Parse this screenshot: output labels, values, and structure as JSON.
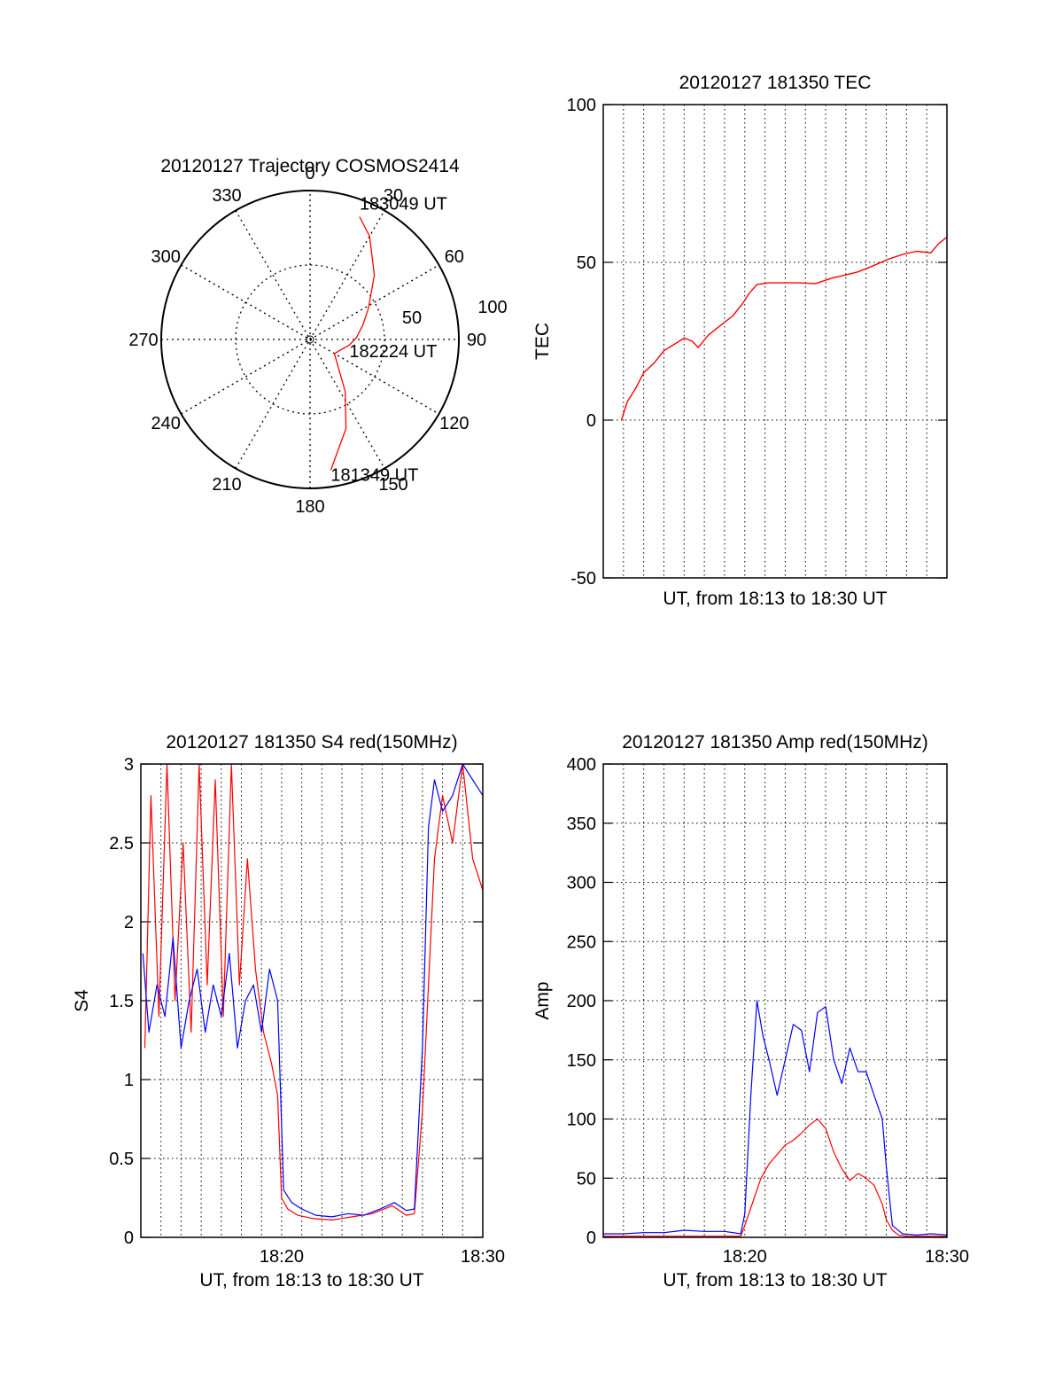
{
  "colors": {
    "red": "#ff0000",
    "blue": "#0000ff",
    "axes": "#000000",
    "grid": "#000000"
  },
  "chart_data": [
    {
      "type": "polar",
      "title": "20120127 Trajectory COSMOS2414",
      "azimuth_labels": [
        "0",
        "30",
        "60",
        "90",
        "120",
        "150",
        "180",
        "210",
        "240",
        "270",
        "300",
        "330"
      ],
      "radial_labels": [
        "50",
        "100"
      ],
      "grid": true,
      "series": [
        {
          "color": "red",
          "points_az_el": [
            [
              171,
              10
            ],
            [
              158,
              32
            ],
            [
              146,
              52
            ],
            [
              120,
              73
            ],
            [
              98,
              66
            ],
            [
              88,
              62
            ],
            [
              75,
              57
            ],
            [
              62,
              50
            ],
            [
              45,
              35
            ],
            [
              30,
              18
            ],
            [
              22,
              10
            ]
          ]
        }
      ],
      "annotations": [
        {
          "text": "183049 UT",
          "az": 22,
          "el": 10
        },
        {
          "text": "182224 UT",
          "az": 98,
          "el": 66
        },
        {
          "text": "181349 UT",
          "az": 171,
          "el": 10
        }
      ]
    },
    {
      "type": "line",
      "title": "20120127 181350 TEC",
      "xlabel": "UT, from 18:13 to 18:30 UT",
      "ylabel": "TEC",
      "xlim": [
        0,
        17
      ],
      "ylim": [
        -50,
        100
      ],
      "yticks": [
        "100",
        "50",
        "0",
        "-50"
      ],
      "xticks": [],
      "grid": true,
      "series": [
        {
          "color": "red",
          "x": [
            0.9,
            1.2,
            1.6,
            2.0,
            2.5,
            3.0,
            3.5,
            4.0,
            4.4,
            4.7,
            5.2,
            5.8,
            6.4,
            6.9,
            7.2,
            7.6,
            8.2,
            9.0,
            9.6,
            10.5,
            11.3,
            12.0,
            12.6,
            13.2,
            14.1,
            14.8,
            15.5,
            16.2,
            16.6,
            17.0
          ],
          "y": [
            0,
            6,
            10,
            15,
            18,
            22,
            24,
            26,
            25,
            23,
            27,
            30,
            33,
            37,
            40,
            43,
            43.5,
            43.5,
            43.5,
            43.3,
            45,
            46,
            47,
            48.5,
            51,
            52.5,
            53.5,
            53,
            56,
            58
          ]
        }
      ]
    },
    {
      "type": "line",
      "title": "20120127 181350 S4 red(150MHz)",
      "xlabel": "UT, from 18:13 to 18:30 UT",
      "ylabel": "S4",
      "xlim": [
        0,
        17
      ],
      "ylim": [
        0,
        3
      ],
      "yticks": [
        "3",
        "2.5",
        "2",
        "1.5",
        "1",
        "0.5",
        "0"
      ],
      "xticks": [
        {
          "at": 7,
          "label": "18:20"
        },
        {
          "at": 17,
          "label": "18:30"
        }
      ],
      "grid": true,
      "series": [
        {
          "color": "red",
          "x": [
            0.2,
            0.5,
            0.9,
            1.3,
            1.7,
            2.1,
            2.5,
            2.9,
            3.3,
            3.7,
            4.1,
            4.5,
            4.9,
            5.3,
            5.7,
            6.1,
            6.5,
            6.8,
            7.0,
            7.3,
            7.8,
            8.5,
            9.5,
            10.5,
            11.5,
            12.5,
            13.2,
            13.6,
            14.0,
            14.3,
            14.6,
            15.0,
            15.5,
            16.0,
            16.5,
            17.0
          ],
          "y": [
            1.2,
            2.8,
            1.4,
            3.0,
            1.5,
            2.5,
            1.3,
            3.0,
            1.6,
            2.9,
            1.4,
            3.0,
            1.6,
            2.4,
            1.7,
            1.3,
            1.1,
            0.9,
            0.25,
            0.18,
            0.14,
            0.12,
            0.11,
            0.13,
            0.15,
            0.2,
            0.14,
            0.15,
            0.8,
            1.6,
            2.4,
            2.8,
            2.5,
            3.0,
            2.4,
            2.2
          ]
        },
        {
          "color": "blue",
          "x": [
            0.1,
            0.4,
            0.8,
            1.2,
            1.6,
            2.0,
            2.4,
            2.8,
            3.2,
            3.6,
            4.0,
            4.4,
            4.8,
            5.2,
            5.6,
            6.0,
            6.4,
            6.8,
            7.1,
            7.5,
            8.0,
            8.7,
            9.5,
            10.3,
            11.1,
            11.9,
            12.6,
            13.2,
            13.6,
            14.0,
            14.3,
            14.6,
            15.0,
            15.5,
            16.0,
            16.5,
            17.0
          ],
          "y": [
            1.8,
            1.3,
            1.6,
            1.4,
            1.9,
            1.2,
            1.5,
            1.7,
            1.3,
            1.6,
            1.4,
            1.8,
            1.2,
            1.5,
            1.6,
            1.3,
            1.7,
            1.5,
            0.3,
            0.22,
            0.18,
            0.14,
            0.13,
            0.15,
            0.14,
            0.18,
            0.22,
            0.17,
            0.18,
            1.2,
            2.6,
            2.9,
            2.7,
            2.8,
            3.0,
            2.9,
            2.8
          ]
        }
      ]
    },
    {
      "type": "line",
      "title": "20120127 181350 Amp red(150MHz)",
      "xlabel": "UT, from 18:13 to 18:30 UT",
      "ylabel": "Amp",
      "xlim": [
        0,
        17
      ],
      "ylim": [
        0,
        400
      ],
      "yticks": [
        "400",
        "350",
        "300",
        "250",
        "200",
        "150",
        "100",
        "50",
        "0"
      ],
      "xticks": [
        {
          "at": 7,
          "label": "18:20"
        },
        {
          "at": 17,
          "label": "18:30"
        }
      ],
      "grid": true,
      "series": [
        {
          "color": "red",
          "x": [
            0.0,
            3.0,
            6.8,
            7.0,
            7.4,
            7.8,
            8.2,
            8.6,
            9.0,
            9.4,
            9.8,
            10.2,
            10.6,
            11.0,
            11.4,
            11.8,
            12.2,
            12.6,
            13.0,
            13.4,
            13.8,
            14.0,
            14.3,
            14.6,
            15.0,
            17.0
          ],
          "y": [
            1,
            1,
            1,
            10,
            30,
            50,
            62,
            70,
            78,
            82,
            88,
            95,
            100,
            92,
            72,
            58,
            48,
            54,
            50,
            44,
            28,
            15,
            6,
            2,
            1,
            1
          ]
        },
        {
          "color": "blue",
          "x": [
            0.0,
            1.0,
            2.0,
            3.0,
            4.0,
            5.0,
            6.0,
            6.8,
            7.0,
            7.3,
            7.6,
            7.9,
            8.2,
            8.6,
            9.0,
            9.4,
            9.8,
            10.2,
            10.6,
            11.0,
            11.4,
            11.8,
            12.2,
            12.6,
            13.0,
            13.4,
            13.8,
            14.0,
            14.3,
            14.8,
            15.5,
            16.2,
            17.0
          ],
          "y": [
            3,
            3,
            4,
            4,
            6,
            5,
            5,
            3,
            20,
            120,
            200,
            170,
            150,
            120,
            150,
            180,
            175,
            140,
            190,
            195,
            150,
            130,
            160,
            140,
            140,
            120,
            100,
            60,
            10,
            3,
            2,
            3,
            2
          ]
        }
      ]
    }
  ]
}
